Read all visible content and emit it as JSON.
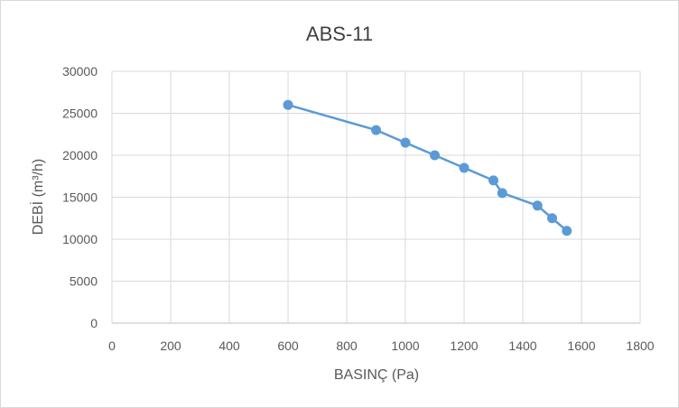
{
  "chart_data": {
    "type": "scatter",
    "title": "ABS-11",
    "xlabel": "BASINÇ (Pa)",
    "ylabel": "DEBİ (m³/h)",
    "xlim": [
      0,
      1800
    ],
    "ylim": [
      0,
      30000
    ],
    "x_ticks": [
      0,
      200,
      400,
      600,
      800,
      1000,
      1200,
      1400,
      1600,
      1800
    ],
    "y_ticks": [
      0,
      5000,
      10000,
      15000,
      20000,
      25000,
      30000
    ],
    "grid": true,
    "legend": "none",
    "line_color": "#5b9bd5",
    "marker_color": "#5b9bd5",
    "series": [
      {
        "x": [
          600,
          900,
          1000,
          1100,
          1200,
          1300,
          1330,
          1450,
          1500,
          1550
        ],
        "y": [
          26000,
          23000,
          21500,
          20000,
          18500,
          17000,
          15500,
          14000,
          12500,
          11000
        ]
      }
    ]
  }
}
